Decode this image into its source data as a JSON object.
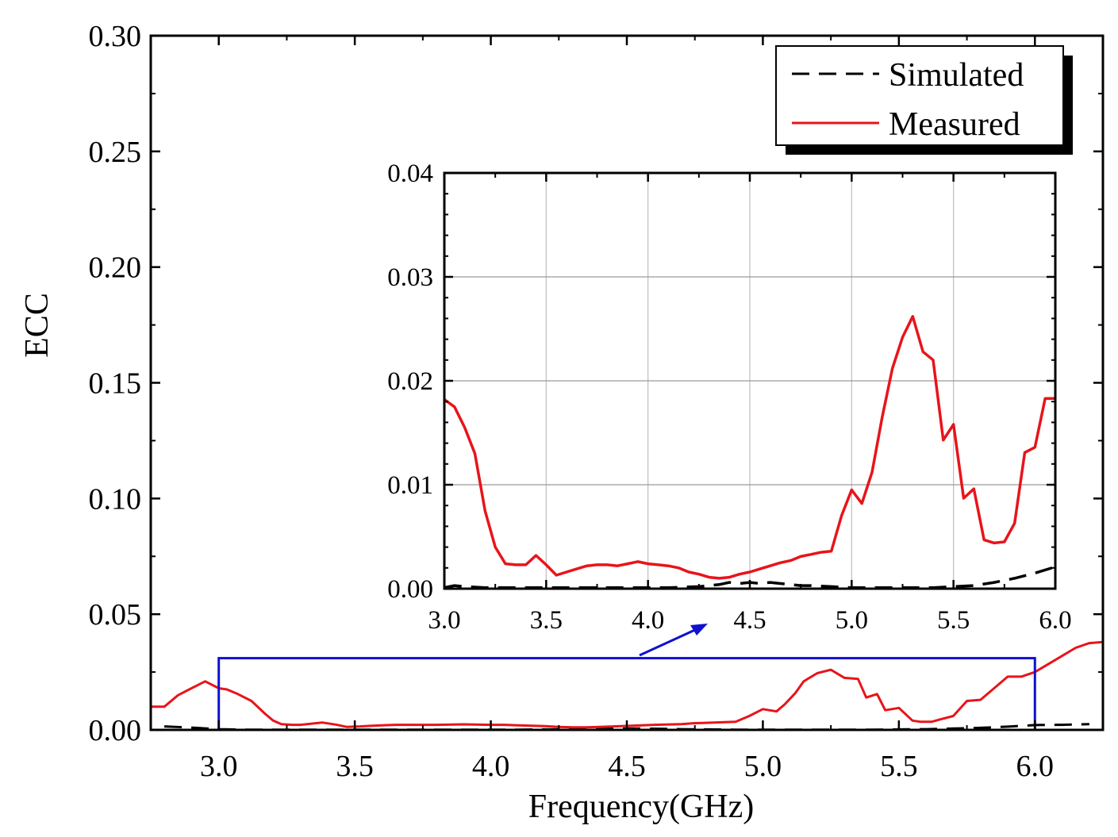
{
  "chart_data": [
    {
      "id": "main",
      "type": "line",
      "xlabel": "Frequency(GHz)",
      "ylabel": "ECC",
      "xlim": [
        2.75,
        6.25
      ],
      "ylim": [
        0,
        0.3
      ],
      "xticks": [
        3.0,
        3.5,
        4.0,
        4.5,
        5.0,
        5.5,
        6.0
      ],
      "xtick_labels": [
        "3.0",
        "3.5",
        "4.0",
        "4.5",
        "5.0",
        "5.5",
        "6.0"
      ],
      "yticks": [
        0,
        0.05,
        0.1,
        0.15,
        0.2,
        0.25,
        0.3
      ],
      "ytick_labels": [
        "0.00",
        "0.05",
        "0.10",
        "0.15",
        "0.20",
        "0.25",
        "0.30"
      ],
      "legend": {
        "position": "top-right",
        "entries": [
          {
            "label": "Simulated",
            "style": "dashed",
            "color": "#000000"
          },
          {
            "label": "Measured",
            "style": "solid",
            "color": "#e8141a"
          }
        ]
      },
      "zoom_box": {
        "x": [
          3.0,
          6.0
        ],
        "y": [
          0,
          0.031
        ],
        "color": "#1010d0"
      },
      "series": [
        {
          "name": "Simulated",
          "color": "#000000",
          "x": [
            2.8,
            2.9,
            3.0,
            3.1,
            3.2,
            3.3,
            3.4,
            3.5,
            3.6,
            3.7,
            3.8,
            3.9,
            4.0,
            4.1,
            4.2,
            4.3,
            4.35,
            4.4,
            4.45,
            4.5,
            4.55,
            4.6,
            4.7,
            4.8,
            4.9,
            5.0,
            5.1,
            5.2,
            5.3,
            5.4,
            5.5,
            5.6,
            5.7,
            5.8,
            5.9,
            6.0,
            6.1,
            6.2
          ],
          "y": [
            0.0015,
            0.001,
            0.0003,
            0.0001,
            0.0001,
            0.0001,
            0.0001,
            0.0001,
            0.0001,
            0.0001,
            0.0001,
            0.0001,
            0.0001,
            0.0001,
            0.0002,
            0.0003,
            0.0005,
            0.0006,
            0.0005,
            0.0006,
            0.0006,
            0.0005,
            0.0003,
            0.0002,
            0.0001,
            0.0001,
            0.0001,
            0.0001,
            0.0001,
            0.0001,
            0.0002,
            0.0003,
            0.0006,
            0.0009,
            0.0014,
            0.0021,
            0.0022,
            0.0025
          ]
        },
        {
          "name": "Measured",
          "color": "#e8141a",
          "x": [
            2.75,
            2.8,
            2.85,
            2.9,
            2.95,
            3.0,
            3.03,
            3.07,
            3.12,
            3.17,
            3.2,
            3.23,
            3.27,
            3.3,
            3.38,
            3.43,
            3.47,
            3.52,
            3.55,
            3.6,
            3.65,
            3.7,
            3.8,
            3.9,
            4.0,
            4.05,
            4.1,
            4.2,
            4.25,
            4.3,
            4.35,
            4.4,
            4.45,
            4.5,
            4.6,
            4.7,
            4.75,
            4.8,
            4.85,
            4.9,
            4.95,
            5.0,
            5.05,
            5.08,
            5.12,
            5.15,
            5.2,
            5.25,
            5.3,
            5.35,
            5.38,
            5.42,
            5.45,
            5.5,
            5.55,
            5.58,
            5.62,
            5.65,
            5.7,
            5.75,
            5.8,
            5.85,
            5.9,
            5.95,
            6.0,
            6.05,
            6.1,
            6.15,
            6.2,
            6.25
          ],
          "y": [
            0.01,
            0.01,
            0.015,
            0.018,
            0.021,
            0.018,
            0.0175,
            0.0155,
            0.0125,
            0.007,
            0.004,
            0.0025,
            0.0022,
            0.0022,
            0.0032,
            0.0023,
            0.0013,
            0.0015,
            0.0017,
            0.002,
            0.0022,
            0.0022,
            0.0022,
            0.0024,
            0.0022,
            0.0022,
            0.002,
            0.0016,
            0.0013,
            0.0011,
            0.0011,
            0.0013,
            0.0015,
            0.0017,
            0.0022,
            0.0025,
            0.0029,
            0.0031,
            0.0033,
            0.0035,
            0.006,
            0.009,
            0.008,
            0.011,
            0.016,
            0.021,
            0.0245,
            0.026,
            0.0225,
            0.022,
            0.014,
            0.0155,
            0.0085,
            0.0095,
            0.004,
            0.0035,
            0.0035,
            0.0045,
            0.006,
            0.0125,
            0.013,
            0.018,
            0.023,
            0.023,
            0.025,
            0.0285,
            0.032,
            0.0355,
            0.0375,
            0.038
          ]
        }
      ]
    },
    {
      "id": "inset",
      "type": "line",
      "xlim": [
        3.0,
        6.0
      ],
      "ylim": [
        0,
        0.04
      ],
      "xticks": [
        3.0,
        3.5,
        4.0,
        4.5,
        5.0,
        5.5,
        6.0
      ],
      "xtick_labels": [
        "3.0",
        "3.5",
        "4.0",
        "4.5",
        "5.0",
        "5.5",
        "6.0"
      ],
      "yticks": [
        0,
        0.01,
        0.02,
        0.03,
        0.04
      ],
      "ytick_labels": [
        "0.00",
        "0.01",
        "0.02",
        "0.03",
        "0.04"
      ],
      "grid": true,
      "series": [
        {
          "name": "Simulated",
          "color": "#000000",
          "x": [
            3.0,
            3.05,
            3.1,
            3.2,
            3.3,
            3.5,
            3.7,
            3.9,
            4.1,
            4.25,
            4.3,
            4.35,
            4.4,
            4.45,
            4.5,
            4.55,
            4.6,
            4.65,
            4.7,
            4.75,
            4.8,
            4.9,
            5.0,
            5.2,
            5.4,
            5.5,
            5.6,
            5.7,
            5.8,
            5.9,
            6.0
          ],
          "y": [
            0.0001,
            0.0003,
            0.0002,
            0.0001,
            0.0001,
            0.0001,
            0.0001,
            0.0001,
            0.0001,
            0.0002,
            0.0003,
            0.0004,
            0.0006,
            0.0005,
            0.0006,
            0.0005,
            0.0006,
            0.0005,
            0.0004,
            0.0003,
            0.0003,
            0.0002,
            0.0001,
            0.0001,
            0.0001,
            0.0002,
            0.0003,
            0.0006,
            0.001,
            0.0015,
            0.0021
          ]
        },
        {
          "name": "Measured",
          "color": "#e8141a",
          "x": [
            3.0,
            3.05,
            3.1,
            3.15,
            3.2,
            3.25,
            3.3,
            3.35,
            3.4,
            3.45,
            3.5,
            3.55,
            3.6,
            3.65,
            3.7,
            3.75,
            3.8,
            3.85,
            3.9,
            3.95,
            4.0,
            4.05,
            4.1,
            4.15,
            4.2,
            4.25,
            4.3,
            4.35,
            4.4,
            4.45,
            4.5,
            4.55,
            4.6,
            4.65,
            4.7,
            4.75,
            4.8,
            4.85,
            4.9,
            4.95,
            5.0,
            5.05,
            5.1,
            5.15,
            5.2,
            5.25,
            5.3,
            5.35,
            5.4,
            5.45,
            5.5,
            5.55,
            5.6,
            5.65,
            5.7,
            5.75,
            5.8,
            5.85,
            5.9,
            5.95,
            6.0
          ],
          "y": [
            0.0182,
            0.0175,
            0.0155,
            0.013,
            0.0075,
            0.004,
            0.0024,
            0.0023,
            0.0023,
            0.0032,
            0.0023,
            0.0013,
            0.0016,
            0.0019,
            0.0022,
            0.0023,
            0.0023,
            0.0022,
            0.0024,
            0.0026,
            0.0024,
            0.0023,
            0.0022,
            0.002,
            0.0016,
            0.0014,
            0.0011,
            0.001,
            0.0011,
            0.0014,
            0.0016,
            0.0019,
            0.0022,
            0.0025,
            0.0027,
            0.0031,
            0.0033,
            0.0035,
            0.0036,
            0.007,
            0.0095,
            0.0082,
            0.0112,
            0.0165,
            0.0212,
            0.0242,
            0.0262,
            0.0228,
            0.022,
            0.0143,
            0.0158,
            0.0087,
            0.0096,
            0.0047,
            0.0044,
            0.0045,
            0.0063,
            0.0131,
            0.0136,
            0.0183,
            0.0183
          ]
        }
      ]
    }
  ]
}
